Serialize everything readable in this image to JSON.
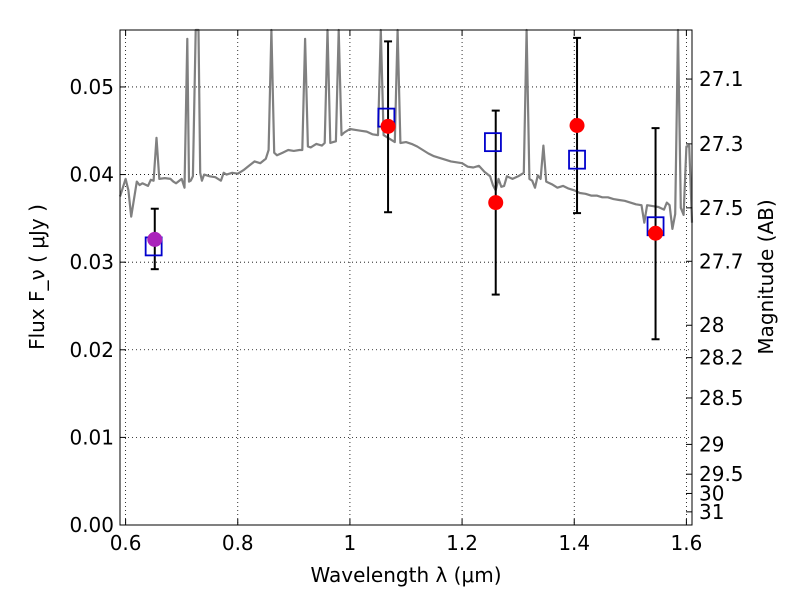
{
  "chart_data": {
    "type": "scatter",
    "xlabel": "Wavelength  λ (μm)",
    "ylabel": "Flux  F_ν  ( μJy )",
    "ylabel_right": "Magnitude (AB)",
    "xlim": [
      0.59,
      1.61
    ],
    "ylim": [
      0.0,
      0.0565
    ],
    "grid": true,
    "x_ticks": [
      0.6,
      0.8,
      1.0,
      1.2,
      1.4,
      1.6
    ],
    "x_tick_labels": [
      "0.6",
      "0.8",
      "1",
      "1.2",
      "1.4",
      "1.6"
    ],
    "y_ticks": [
      0.0,
      0.01,
      0.02,
      0.03,
      0.04,
      0.05
    ],
    "y_tick_labels": [
      "0.00",
      "0.01",
      "0.02",
      "0.03",
      "0.04",
      "0.05"
    ],
    "right_axis_ticks": [
      {
        "label": "27.1",
        "flux": 0.0509
      },
      {
        "label": "27.3",
        "flux": 0.0435
      },
      {
        "label": "27.5",
        "flux": 0.0362
      },
      {
        "label": "27.7",
        "flux": 0.0301
      },
      {
        "label": "28",
        "flux": 0.0228
      },
      {
        "label": "28.2",
        "flux": 0.0191
      },
      {
        "label": "28.5",
        "flux": 0.0145
      },
      {
        "label": "29",
        "flux": 0.0092
      },
      {
        "label": "29.5",
        "flux": 0.0058
      },
      {
        "label": "30",
        "flux": 0.0036
      },
      {
        "label": "31",
        "flux": 0.0015
      }
    ],
    "series": [
      {
        "kind": "model_spectrum",
        "color": "#808080",
        "x": [
          0.59,
          0.6,
          0.605,
          0.61,
          0.62,
          0.625,
          0.63,
          0.64,
          0.645,
          0.65,
          0.655,
          0.66,
          0.67,
          0.68,
          0.685,
          0.69,
          0.7,
          0.705,
          0.71,
          0.713,
          0.716,
          0.72,
          0.725,
          0.73,
          0.733,
          0.736,
          0.74,
          0.75,
          0.76,
          0.77,
          0.775,
          0.78,
          0.79,
          0.8,
          0.81,
          0.82,
          0.83,
          0.84,
          0.85,
          0.855,
          0.86,
          0.865,
          0.87,
          0.88,
          0.89,
          0.9,
          0.91,
          0.915,
          0.92,
          0.925,
          0.93,
          0.94,
          0.95,
          0.955,
          0.96,
          0.965,
          0.97,
          0.975,
          0.98,
          0.985,
          0.99,
          1.0,
          1.01,
          1.02,
          1.03,
          1.04,
          1.05,
          1.055,
          1.06,
          1.07,
          1.08,
          1.085,
          1.09,
          1.1,
          1.11,
          1.12,
          1.13,
          1.14,
          1.15,
          1.16,
          1.17,
          1.18,
          1.19,
          1.2,
          1.21,
          1.22,
          1.23,
          1.24,
          1.25,
          1.255,
          1.26,
          1.265,
          1.27,
          1.275,
          1.28,
          1.29,
          1.3,
          1.31,
          1.315,
          1.32,
          1.325,
          1.33,
          1.335,
          1.34,
          1.345,
          1.35,
          1.36,
          1.37,
          1.38,
          1.39,
          1.4,
          1.41,
          1.42,
          1.43,
          1.44,
          1.45,
          1.46,
          1.47,
          1.48,
          1.49,
          1.5,
          1.51,
          1.52,
          1.525,
          1.53,
          1.54,
          1.55,
          1.56,
          1.565,
          1.57,
          1.575,
          1.58,
          1.585,
          1.59,
          1.595,
          1.6,
          1.605,
          1.61
        ],
        "y": [
          0.0375,
          0.0395,
          0.0382,
          0.0352,
          0.0392,
          0.0388,
          0.039,
          0.0387,
          0.0394,
          0.0393,
          0.0442,
          0.0395,
          0.0396,
          0.0395,
          0.0392,
          0.039,
          0.0395,
          0.0385,
          0.0555,
          0.0392,
          0.0393,
          0.0398,
          0.0565,
          0.0565,
          0.0402,
          0.0393,
          0.04,
          0.0398,
          0.0397,
          0.0393,
          0.0402,
          0.04,
          0.0402,
          0.0401,
          0.0405,
          0.041,
          0.0415,
          0.0413,
          0.0418,
          0.0428,
          0.0565,
          0.0425,
          0.0422,
          0.0425,
          0.0428,
          0.0427,
          0.0428,
          0.0428,
          0.0555,
          0.0432,
          0.0431,
          0.0435,
          0.0433,
          0.0436,
          0.0565,
          0.0436,
          0.0437,
          0.0438,
          0.0565,
          0.0445,
          0.0448,
          0.0452,
          0.0451,
          0.045,
          0.0449,
          0.0446,
          0.0445,
          0.0565,
          0.0445,
          0.0441,
          0.0437,
          0.0565,
          0.0436,
          0.0437,
          0.0435,
          0.0432,
          0.0428,
          0.0424,
          0.0421,
          0.0419,
          0.0417,
          0.0415,
          0.0414,
          0.0413,
          0.0409,
          0.0408,
          0.041,
          0.0403,
          0.0398,
          0.0388,
          0.0382,
          0.0395,
          0.0386,
          0.0387,
          0.0398,
          0.0395,
          0.0398,
          0.0402,
          0.0565,
          0.0395,
          0.0393,
          0.0385,
          0.0399,
          0.0395,
          0.0433,
          0.0392,
          0.0389,
          0.0385,
          0.0387,
          0.0384,
          0.0382,
          0.0379,
          0.0378,
          0.0376,
          0.0376,
          0.0374,
          0.0374,
          0.0372,
          0.0371,
          0.037,
          0.0368,
          0.0366,
          0.0365,
          0.0345,
          0.0365,
          0.0364,
          0.0363,
          0.036,
          0.0368,
          0.0365,
          0.0338,
          0.0355,
          0.0565,
          0.0362,
          0.0354,
          0.0432,
          0.0433,
          0.0345
        ]
      },
      {
        "kind": "model_photometry",
        "marker": "open-square",
        "color": "#0000cc",
        "x": [
          0.65,
          1.065,
          1.255,
          1.405,
          1.545
        ],
        "y": [
          0.0318,
          0.0465,
          0.0437,
          0.0417,
          0.0341
        ]
      },
      {
        "kind": "observed",
        "marker": "filled-circle",
        "color": "#ff0000",
        "x": [
          0.652,
          1.068,
          1.26,
          1.405,
          1.545
        ],
        "y": [
          0.0326,
          0.0455,
          0.0368,
          0.0456,
          0.0333
        ],
        "yerr_low": [
          0.0292,
          0.0357,
          0.0263,
          0.0356,
          0.0212
        ],
        "yerr_high": [
          0.0361,
          0.0552,
          0.0473,
          0.0556,
          0.0453
        ],
        "first_point_color": "#aa22bb"
      }
    ]
  }
}
